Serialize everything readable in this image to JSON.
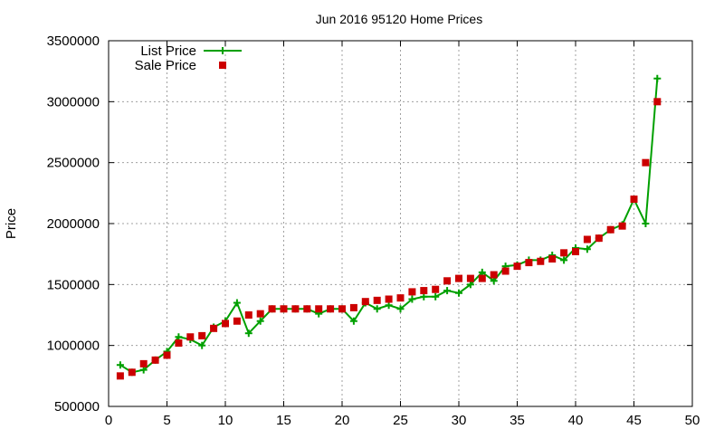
{
  "chart_data": {
    "type": "line",
    "title": "Jun 2016 95120 Home Prices",
    "xlabel": "",
    "ylabel": "Price",
    "xlim": [
      0,
      50
    ],
    "ylim": [
      500000,
      3500000
    ],
    "xticks": [
      0,
      5,
      10,
      15,
      20,
      25,
      30,
      35,
      40,
      45,
      50
    ],
    "yticks": [
      500000,
      1000000,
      1500000,
      2000000,
      2500000,
      3000000,
      3500000
    ],
    "grid": true,
    "legend_position": "top-left",
    "series": [
      {
        "name": "List Price",
        "style": "line+plus",
        "color": "#00a000",
        "x": [
          1,
          2,
          3,
          4,
          5,
          6,
          7,
          8,
          9,
          10,
          11,
          12,
          13,
          14,
          15,
          16,
          17,
          18,
          19,
          20,
          21,
          22,
          23,
          24,
          25,
          26,
          27,
          28,
          29,
          30,
          31,
          32,
          33,
          34,
          35,
          36,
          37,
          38,
          39,
          40,
          41,
          42,
          43,
          44,
          45,
          46,
          47
        ],
        "values": [
          840000,
          780000,
          800000,
          880000,
          950000,
          1070000,
          1050000,
          1000000,
          1150000,
          1200000,
          1350000,
          1100000,
          1200000,
          1300000,
          1300000,
          1300000,
          1300000,
          1260000,
          1300000,
          1300000,
          1200000,
          1350000,
          1300000,
          1330000,
          1300000,
          1380000,
          1400000,
          1400000,
          1450000,
          1430000,
          1500000,
          1600000,
          1530000,
          1650000,
          1660000,
          1700000,
          1700000,
          1740000,
          1700000,
          1800000,
          1790000,
          1880000,
          1950000,
          1990000,
          2200000,
          2000000,
          3190000
        ]
      },
      {
        "name": "Sale Price",
        "style": "square",
        "color": "#cc0000",
        "x": [
          1,
          2,
          3,
          4,
          5,
          6,
          7,
          8,
          9,
          10,
          11,
          12,
          13,
          14,
          15,
          16,
          17,
          18,
          19,
          20,
          21,
          22,
          23,
          24,
          25,
          26,
          27,
          28,
          29,
          30,
          31,
          32,
          33,
          34,
          35,
          36,
          37,
          38,
          39,
          40,
          41,
          42,
          43,
          44,
          45,
          46,
          47
        ],
        "values": [
          750000,
          780000,
          850000,
          880000,
          920000,
          1020000,
          1070000,
          1080000,
          1140000,
          1180000,
          1200000,
          1250000,
          1260000,
          1300000,
          1300000,
          1300000,
          1300000,
          1300000,
          1300000,
          1300000,
          1310000,
          1360000,
          1370000,
          1380000,
          1390000,
          1440000,
          1450000,
          1460000,
          1530000,
          1550000,
          1550000,
          1550000,
          1580000,
          1610000,
          1650000,
          1680000,
          1690000,
          1710000,
          1760000,
          1770000,
          1870000,
          1880000,
          1950000,
          1980000,
          2200000,
          2500000,
          3000000
        ]
      }
    ]
  }
}
